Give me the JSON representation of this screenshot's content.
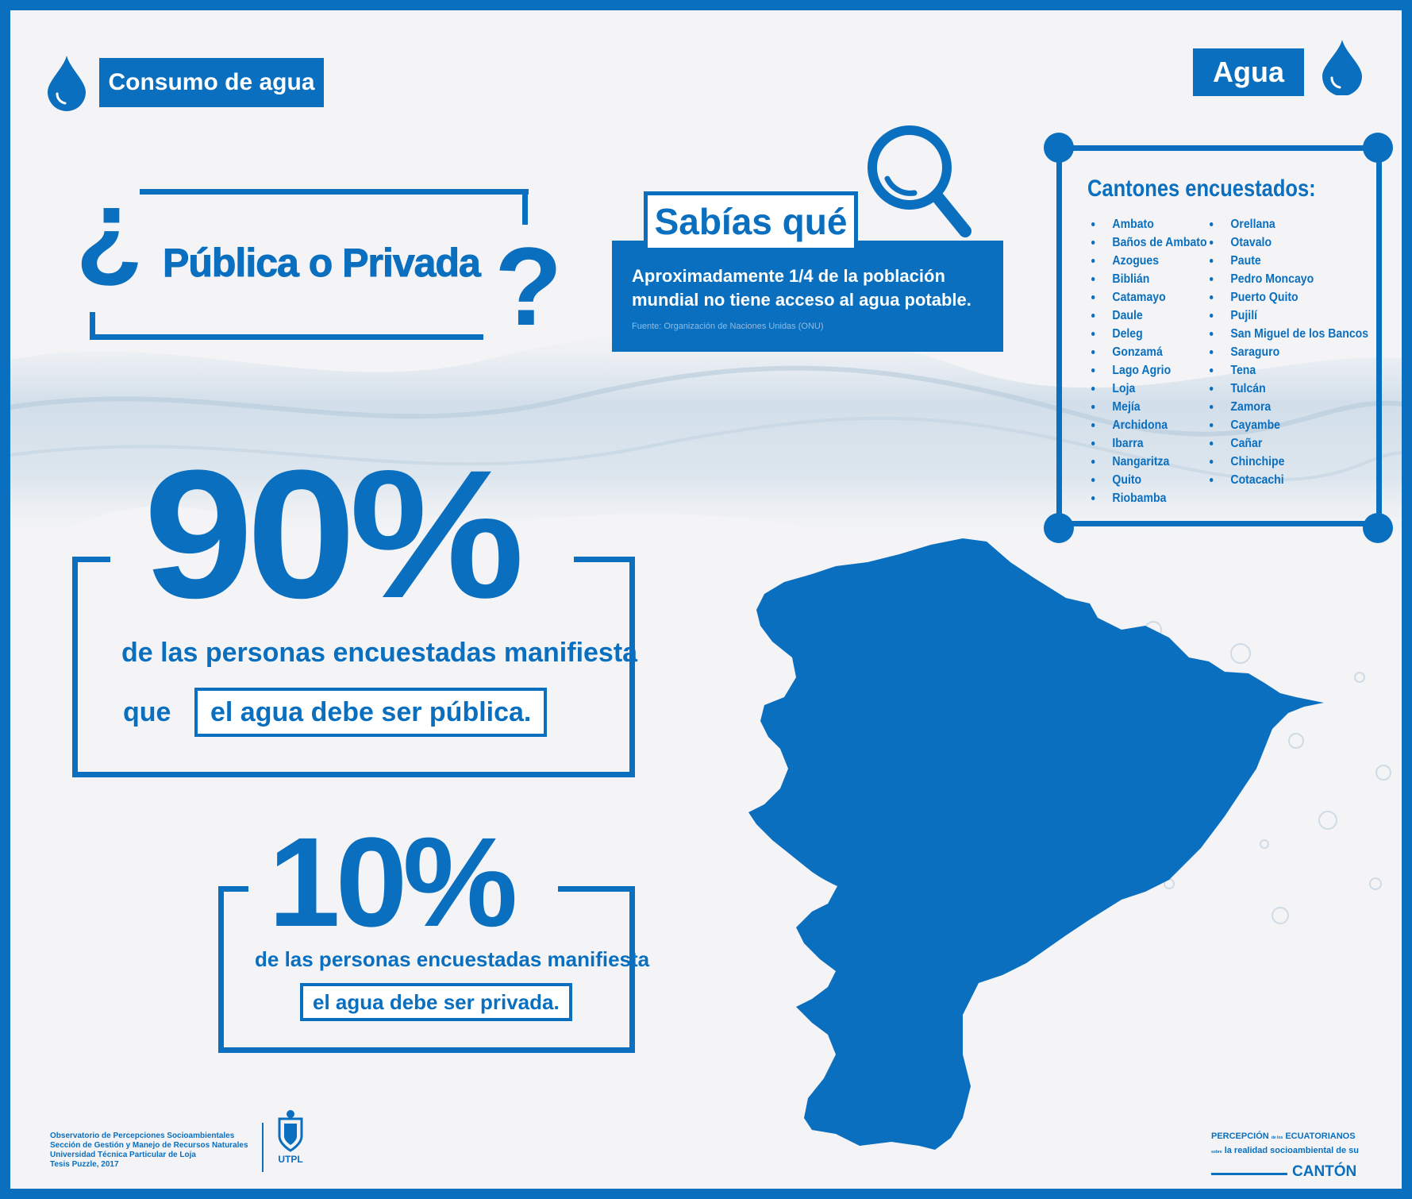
{
  "header": {
    "left_tag": "Consumo de agua",
    "right_tag": "Agua"
  },
  "question": {
    "open_mark": "¿",
    "text": "Pública o Privada",
    "close_mark": "?"
  },
  "fact": {
    "title": "Sabías qué",
    "line1": "Aproximadamente 1/4 de la población",
    "line2": "mundial no tiene acceso al agua potable.",
    "source": "Fuente:  Organización de Naciones Unidas (ONU)"
  },
  "cantons": {
    "title": "Cantones encuestados:",
    "col1": [
      "Ambato",
      "Baños de Ambato",
      "Azogues",
      "Biblián",
      "Catamayo",
      "Daule",
      "Deleg",
      "Gonzamá",
      "Lago Agrio",
      "Loja",
      "Mejía",
      "Archidona",
      "Ibarra",
      "Nangaritza",
      "Quito",
      "Riobamba"
    ],
    "col2": [
      "Orellana",
      "Otavalo",
      "Paute",
      "Pedro Moncayo",
      "Puerto Quito",
      "Pujilí",
      "San Miguel de los Bancos",
      "Saraguro",
      "Tena",
      "Tulcán",
      "Zamora",
      "Cayambe",
      "Cañar",
      "Chinchipe",
      "Cotacachi"
    ]
  },
  "stat_public": {
    "value": "90%",
    "line1": "de las personas encuestadas manifiesta",
    "prefix": "que",
    "highlight": "el agua debe ser pública."
  },
  "stat_private": {
    "value": "10%",
    "line1": "de las personas encuestadas manifiesta",
    "highlight": "el agua debe ser privada."
  },
  "footer": {
    "org_line1": "Observatorio de Percepciones Socioambientales",
    "org_line2": "Sección de Gestión y Manejo de Recursos Naturales",
    "org_line3": "Universidad Técnica Particular de Loja",
    "org_line4": "Tesis Puzzle, 2017",
    "logo_text": "UTPL",
    "brand_line1a": "PERCEPCIÓN",
    "brand_small1": "de los",
    "brand_line1b": "ECUATORIANOS",
    "brand_small2": "sobre",
    "brand_line2": "la realidad socioambiental de su",
    "brand_line3": "CANTÓN"
  },
  "colors": {
    "primary": "#0a6fbf",
    "background": "#f4f4f6",
    "white": "#ffffff"
  },
  "icons": [
    "water-drop-icon",
    "magnifier-icon",
    "ecuador-map",
    "utpl-shield-icon"
  ]
}
